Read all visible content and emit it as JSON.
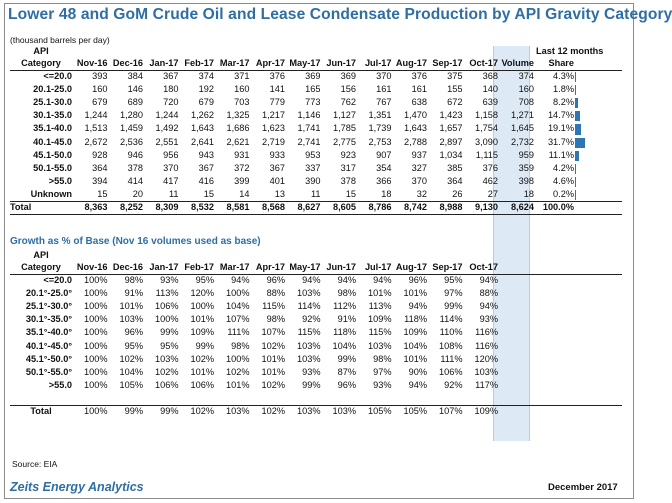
{
  "title": "Lower 48 and GoM Crude Oil and Lease Condensate Production by API Gravity Category",
  "units": "(thousand barrels per day)",
  "last12_label": "Last 12 months",
  "source": "Source: EIA",
  "brand": "Zeits Energy Analytics",
  "date": "December 2017",
  "colors": {
    "accent": "#2f6ea3",
    "bar": "#2e75b6",
    "highlight": "#dde9f5"
  },
  "table1": {
    "header_top": "API",
    "header_cat": "Category",
    "months": [
      "Nov-16",
      "Dec-16",
      "Jan-17",
      "Feb-17",
      "Mar-17",
      "Apr-17",
      "May-17",
      "Jun-17",
      "Jul-17",
      "Aug-17",
      "Sep-17",
      "Oct-17"
    ],
    "extra_headers": [
      "Volume",
      "Share"
    ],
    "rows": [
      {
        "cat": "<=20.0",
        "v": [
          "393",
          "384",
          "367",
          "374",
          "371",
          "376",
          "369",
          "369",
          "370",
          "376",
          "375",
          "368"
        ],
        "vol": "374",
        "share": "4.3%",
        "share_pct": 4.3
      },
      {
        "cat": "20.1-25.0",
        "v": [
          "160",
          "146",
          "180",
          "192",
          "160",
          "141",
          "165",
          "156",
          "161",
          "161",
          "155",
          "140"
        ],
        "vol": "160",
        "share": "1.8%",
        "share_pct": 1.8
      },
      {
        "cat": "25.1-30.0",
        "v": [
          "679",
          "689",
          "720",
          "679",
          "703",
          "779",
          "773",
          "762",
          "767",
          "638",
          "672",
          "639"
        ],
        "vol": "708",
        "share": "8.2%",
        "share_pct": 8.2
      },
      {
        "cat": "30.1-35.0",
        "v": [
          "1,244",
          "1,280",
          "1,244",
          "1,262",
          "1,325",
          "1,217",
          "1,146",
          "1,127",
          "1,351",
          "1,470",
          "1,423",
          "1,158"
        ],
        "vol": "1,271",
        "share": "14.7%",
        "share_pct": 14.7
      },
      {
        "cat": "35.1-40.0",
        "v": [
          "1,513",
          "1,459",
          "1,492",
          "1,643",
          "1,686",
          "1,623",
          "1,741",
          "1,785",
          "1,739",
          "1,643",
          "1,657",
          "1,754"
        ],
        "vol": "1,645",
        "share": "19.1%",
        "share_pct": 19.1
      },
      {
        "cat": "40.1-45.0",
        "v": [
          "2,672",
          "2,536",
          "2,551",
          "2,641",
          "2,621",
          "2,719",
          "2,741",
          "2,775",
          "2,753",
          "2,788",
          "2,897",
          "3,090"
        ],
        "vol": "2,732",
        "share": "31.7%",
        "share_pct": 31.7
      },
      {
        "cat": "45.1-50.0",
        "v": [
          "928",
          "946",
          "956",
          "943",
          "931",
          "933",
          "953",
          "923",
          "907",
          "937",
          "1,034",
          "1,115"
        ],
        "vol": "959",
        "share": "11.1%",
        "share_pct": 11.1
      },
      {
        "cat": "50.1-55.0",
        "v": [
          "364",
          "378",
          "370",
          "367",
          "372",
          "367",
          "337",
          "317",
          "354",
          "327",
          "385",
          "376"
        ],
        "vol": "359",
        "share": "4.2%",
        "share_pct": 4.2
      },
      {
        "cat": ">55.0",
        "v": [
          "394",
          "414",
          "417",
          "416",
          "399",
          "401",
          "390",
          "378",
          "366",
          "370",
          "364",
          "462"
        ],
        "vol": "398",
        "share": "4.6%",
        "share_pct": 4.6
      },
      {
        "cat": "Unknown",
        "v": [
          "15",
          "20",
          "11",
          "15",
          "14",
          "13",
          "11",
          "15",
          "18",
          "32",
          "26",
          "27"
        ],
        "vol": "18",
        "share": "0.2%",
        "share_pct": 0.2
      }
    ],
    "total": {
      "cat": "Total",
      "v": [
        "8,363",
        "8,252",
        "8,309",
        "8,532",
        "8,581",
        "8,568",
        "8,627",
        "8,605",
        "8,786",
        "8,742",
        "8,988",
        "9,130"
      ],
      "vol": "8,624",
      "share": "100.0%"
    }
  },
  "section2_title": "Growth as % of Base (Nov 16 volumes used as base)",
  "table2": {
    "header_top": "API",
    "header_cat": "Category",
    "months": [
      "Nov-16",
      "Dec-16",
      "Jan-17",
      "Feb-17",
      "Mar-17",
      "Apr-17",
      "May-17",
      "Jun-17",
      "Jul-17",
      "Aug-17",
      "Sep-17",
      "Oct-17"
    ],
    "rows": [
      {
        "cat": "<=20.0",
        "v": [
          "100%",
          "98%",
          "93%",
          "95%",
          "94%",
          "96%",
          "94%",
          "94%",
          "94%",
          "96%",
          "95%",
          "94%"
        ]
      },
      {
        "cat": "20.1°-25.0°",
        "v": [
          "100%",
          "91%",
          "113%",
          "120%",
          "100%",
          "88%",
          "103%",
          "98%",
          "101%",
          "101%",
          "97%",
          "88%"
        ]
      },
      {
        "cat": "25.1°-30.0°",
        "v": [
          "100%",
          "101%",
          "106%",
          "100%",
          "104%",
          "115%",
          "114%",
          "112%",
          "113%",
          "94%",
          "99%",
          "94%"
        ]
      },
      {
        "cat": "30.1°-35.0°",
        "v": [
          "100%",
          "103%",
          "100%",
          "101%",
          "107%",
          "98%",
          "92%",
          "91%",
          "109%",
          "118%",
          "114%",
          "93%"
        ]
      },
      {
        "cat": "35.1°-40.0°",
        "v": [
          "100%",
          "96%",
          "99%",
          "109%",
          "111%",
          "107%",
          "115%",
          "118%",
          "115%",
          "109%",
          "110%",
          "116%"
        ]
      },
      {
        "cat": "40.1°-45.0°",
        "v": [
          "100%",
          "95%",
          "95%",
          "99%",
          "98%",
          "102%",
          "103%",
          "104%",
          "103%",
          "104%",
          "108%",
          "116%"
        ]
      },
      {
        "cat": "45.1°-50.0°",
        "v": [
          "100%",
          "102%",
          "103%",
          "102%",
          "100%",
          "101%",
          "103%",
          "99%",
          "98%",
          "101%",
          "111%",
          "120%"
        ]
      },
      {
        "cat": "50.1°-55.0°",
        "v": [
          "100%",
          "104%",
          "102%",
          "101%",
          "102%",
          "101%",
          "93%",
          "87%",
          "97%",
          "90%",
          "106%",
          "103%"
        ]
      },
      {
        "cat": ">55.0",
        "v": [
          "100%",
          "105%",
          "106%",
          "106%",
          "101%",
          "102%",
          "99%",
          "96%",
          "93%",
          "94%",
          "92%",
          "117%"
        ]
      }
    ],
    "total": {
      "cat": "Total",
      "v": [
        "100%",
        "99%",
        "99%",
        "102%",
        "103%",
        "102%",
        "103%",
        "103%",
        "105%",
        "105%",
        "107%",
        "109%"
      ]
    }
  }
}
